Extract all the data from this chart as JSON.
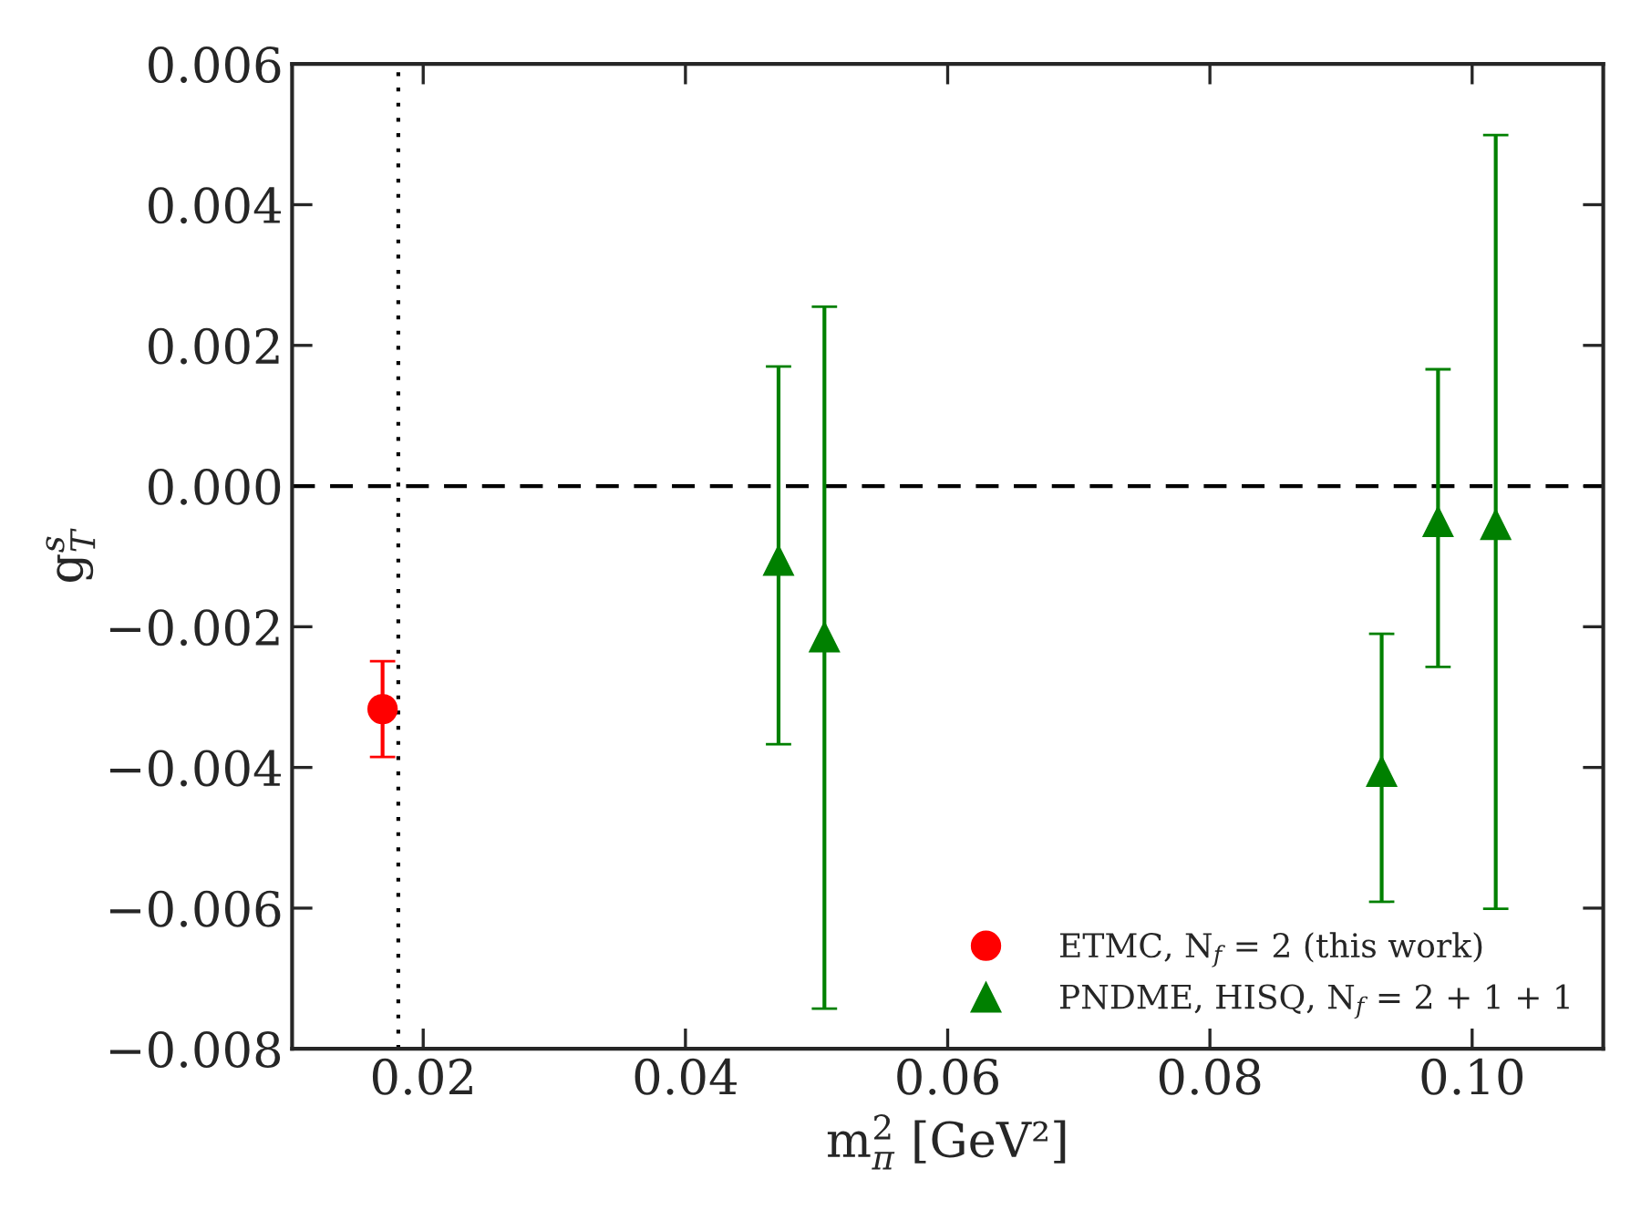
{
  "chart_data": {
    "type": "scatter",
    "xlabel": "m$^{2}$$_{π}$ [GeV²]",
    "ylabel": "g$^{s}$$_{T}$",
    "xlim": [
      0.01,
      0.11
    ],
    "xticks": [
      0.02,
      0.04,
      0.06,
      0.08,
      {
        "value": 0.1,
        "label": "0.10"
      }
    ],
    "ylim": [
      -0.008,
      0.006
    ],
    "yticks": [
      {
        "value": -0.008,
        "label": "−0.008"
      },
      {
        "value": -0.006,
        "label": "−0.006"
      },
      {
        "value": -0.004,
        "label": "−0.004"
      },
      {
        "value": -0.002,
        "label": "−0.002"
      },
      {
        "value": 0,
        "label": "0.000"
      },
      {
        "value": 0.002,
        "label": "0.002"
      },
      {
        "value": 0.004,
        "label": "0.004"
      },
      {
        "value": 0.006,
        "label": "0.006"
      }
    ],
    "series": [
      {
        "name": "ETMC, N$_{f}$ = 2 (this work)",
        "color": "#ff0000",
        "marker": "circle",
        "x": [
          0.0169
        ],
        "values": [
          -0.00317
        ],
        "errors": [
          [
            -0.00385,
            -0.00249
          ]
        ]
      },
      {
        "name": "PNDME, HISQ, N$_{f}$ = 2 + 1 + 1",
        "color": "#008000",
        "marker": "triangle",
        "x": [
          0.0471,
          0.0506,
          0.0931,
          0.0974,
          0.1018
        ],
        "values": [
          -0.00106,
          -0.00215,
          -0.00406,
          -0.00051,
          -0.00055
        ],
        "errors": [
          [
            -0.00367,
            0.0017
          ],
          [
            -0.00743,
            0.00255
          ],
          [
            -0.00591,
            -0.0021
          ],
          [
            -0.00257,
            0.00166
          ],
          [
            -0.00601,
            0.00499
          ]
        ]
      }
    ],
    "ref_lines": [
      {
        "axis": "y",
        "value": 0,
        "color": "#000000",
        "line_style": "dashed"
      },
      {
        "axis": "x",
        "value": 0.0181,
        "color": "#000000",
        "line_style": "dotted"
      }
    ],
    "legend": "bottom right",
    "grid": false
  }
}
